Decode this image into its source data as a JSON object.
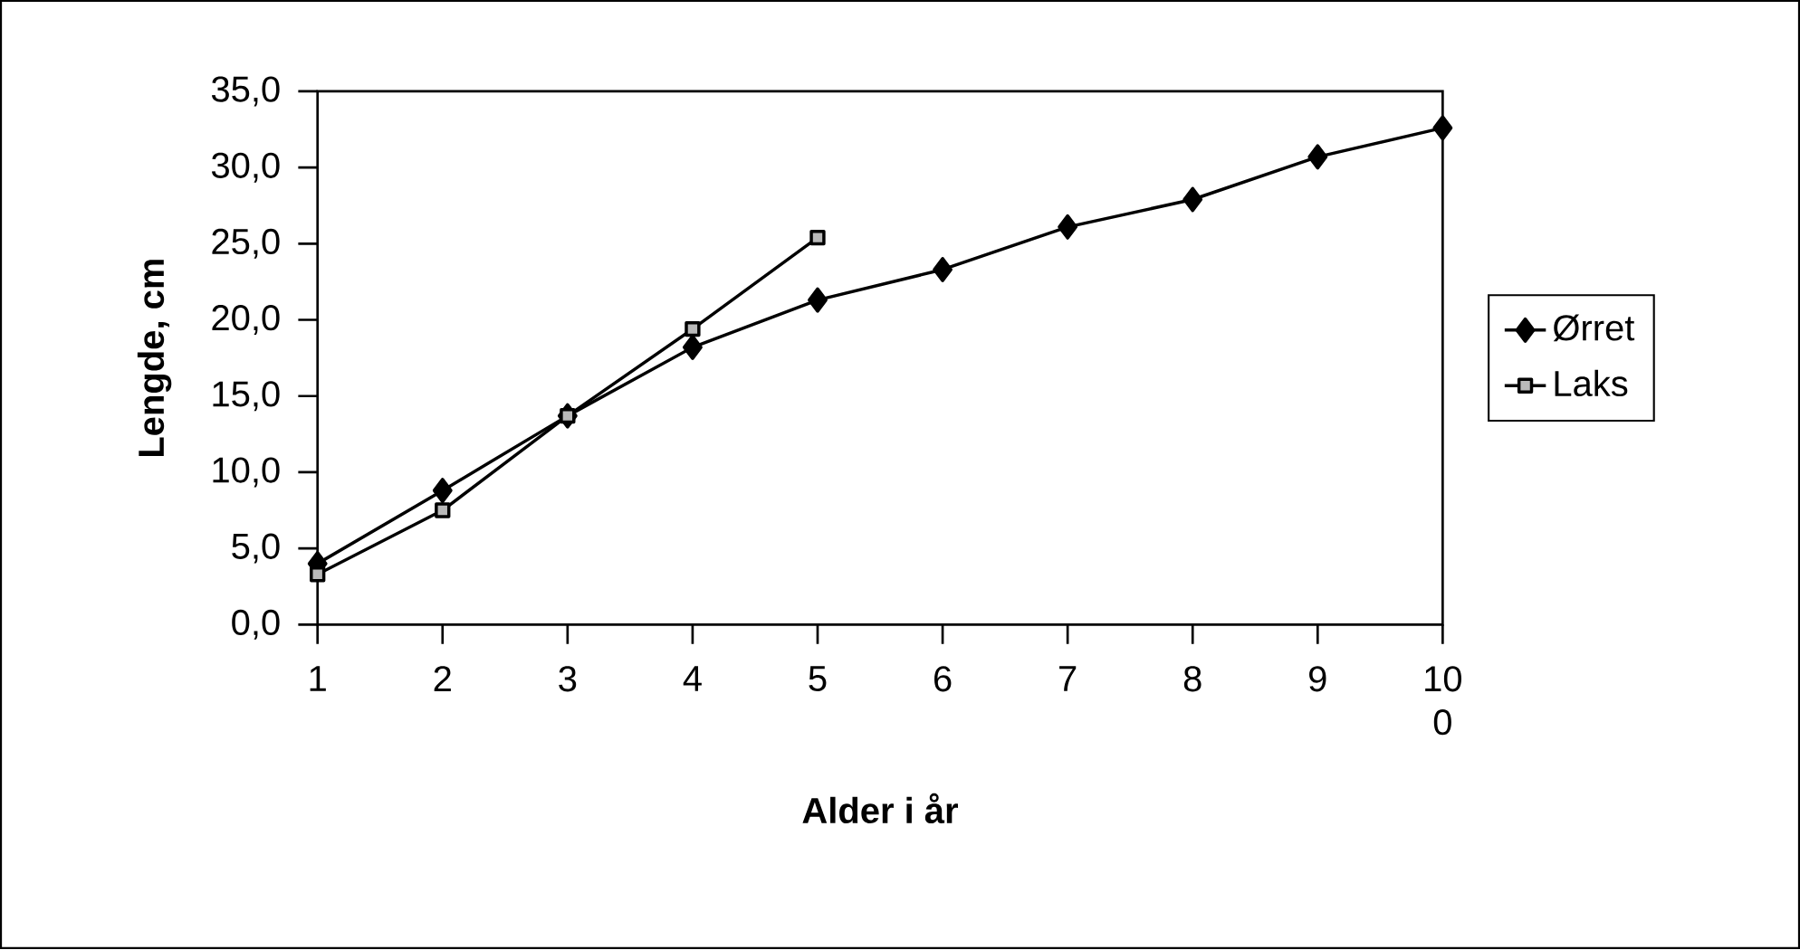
{
  "chart_data": {
    "type": "line",
    "xlabel": "Alder i år",
    "ylabel": "Lengde, cm",
    "categories": [
      "1",
      "2",
      "3",
      "4",
      "5",
      "6",
      "7",
      "8",
      "9",
      "10 0"
    ],
    "series": [
      {
        "name": "Ørret",
        "color": "#000000",
        "marker": "diamond",
        "values": [
          4.0,
          8.8,
          13.7,
          18.2,
          21.3,
          23.3,
          26.1,
          27.9,
          30.7,
          32.6
        ]
      },
      {
        "name": "Laks",
        "color": "#000000",
        "marker": "square",
        "values": [
          3.3,
          7.5,
          13.7,
          19.4,
          25.4,
          null,
          null,
          null,
          null,
          null
        ]
      }
    ],
    "ylim": [
      0,
      35
    ],
    "yticks": [
      {
        "value": 0,
        "label": "0,0"
      },
      {
        "value": 5,
        "label": "5,0"
      },
      {
        "value": 10,
        "label": "10,0"
      },
      {
        "value": 15,
        "label": "15,0"
      },
      {
        "value": 20,
        "label": "20,0"
      },
      {
        "value": 25,
        "label": "25,0"
      },
      {
        "value": 30,
        "label": "30,0"
      },
      {
        "value": 35,
        "label": "35,0"
      }
    ],
    "grid": false,
    "legend": "right"
  }
}
